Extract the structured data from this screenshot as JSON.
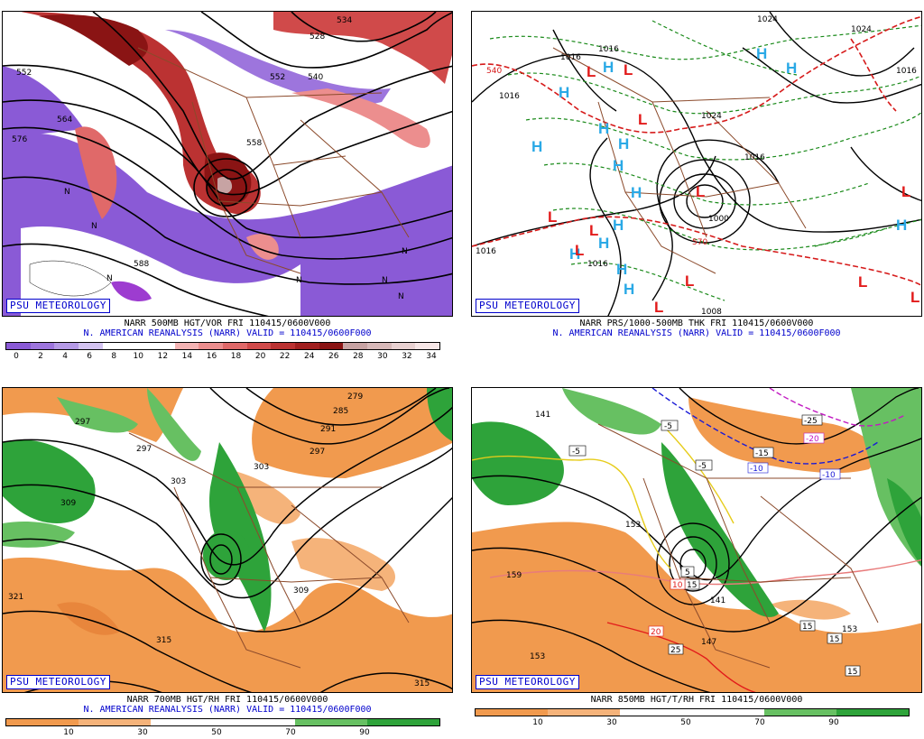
{
  "panels": [
    {
      "id": "p1",
      "badge": "PSU METEOROLOGY",
      "caption_line1": "NARR 500MB HGT/VOR FRI 110415/0600V000",
      "caption_line2": "N. AMERICAN REANALYSIS (NARR) VALID = 110415/0600F000",
      "colorbar_labels": [
        "0",
        "2",
        "4",
        "6",
        "8",
        "10",
        "12",
        "14",
        "16",
        "18",
        "20",
        "22",
        "24",
        "26",
        "28",
        "30",
        "32",
        "34"
      ],
      "colorbar_colors": [
        "#8a5ad6",
        "#9d75dd",
        "#b59ae6",
        "#d3c3f0",
        "#ffffff",
        "#ffffff",
        "#ffffff",
        "#f3b3b3",
        "#ec8e8e",
        "#e06969",
        "#d04a4a",
        "#bb3232",
        "#a11f1f",
        "#8a1414",
        "#c7a3a3",
        "#d7b9b9",
        "#e8d1d1",
        "#f6e6e6"
      ],
      "contour_labels": [
        "552",
        "564",
        "576",
        "528",
        "534",
        "540",
        "552",
        "558",
        "588"
      ],
      "symbols": [
        "N",
        "N",
        "N",
        "N",
        "N",
        "N",
        "N"
      ]
    },
    {
      "id": "p2",
      "badge": "PSU METEOROLOGY",
      "caption_line1": "NARR PRS/1000-500MB THK FRI 110415/0600V000",
      "caption_line2": "N. AMERICAN REANALYSIS (NARR) VALID = 110415/0600F000",
      "contour_labels": [
        "1016",
        "1016",
        "1024",
        "1024",
        "1016",
        "1016",
        "1024",
        "1016",
        "1008",
        "1016",
        "1000",
        "540",
        "570",
        "1016",
        "1016"
      ],
      "high_symbol": "H",
      "low_symbol": "L"
    },
    {
      "id": "p3",
      "badge": "PSU METEOROLOGY",
      "caption_line1": "NARR 700MB HGT/RH FRI 110415/0600V000",
      "caption_line2": "N. AMERICAN REANALYSIS (NARR) VALID = 110415/0600F000",
      "colorbar_labels": [
        "10",
        "30",
        "50",
        "70",
        "90"
      ],
      "contour_labels": [
        "279",
        "285",
        "291",
        "297",
        "297",
        "303",
        "303",
        "309",
        "297",
        "309",
        "315",
        "321",
        "315"
      ]
    },
    {
      "id": "p4",
      "badge": "PSU METEOROLOGY",
      "caption_line1": "NARR 850MB HGT/T/RH FRI 110415/0600V000",
      "colorbar_labels": [
        "10",
        "30",
        "50",
        "70",
        "90"
      ],
      "contour_labels": [
        "141",
        "153",
        "159",
        "153",
        "147",
        "141",
        "153"
      ],
      "temp_labels": [
        "-5",
        "-5",
        "-5",
        "-15",
        "-10",
        "-10",
        "-25",
        "-20",
        "-5",
        "5",
        "15",
        "10",
        "20",
        "25",
        "15",
        "15",
        "15"
      ]
    }
  ],
  "colors": {
    "rh_orange": "#f19a4e",
    "rh_light_orange": "#f5b37a",
    "rh_green": "#2ea33a",
    "rh_light_green": "#67c062",
    "border_brown": "#8b4a2b",
    "high_blue": "#2aa9e6",
    "low_red": "#e21b1b",
    "thickness_green": "#1a8a1a",
    "thickness_red": "#d61a1a"
  }
}
